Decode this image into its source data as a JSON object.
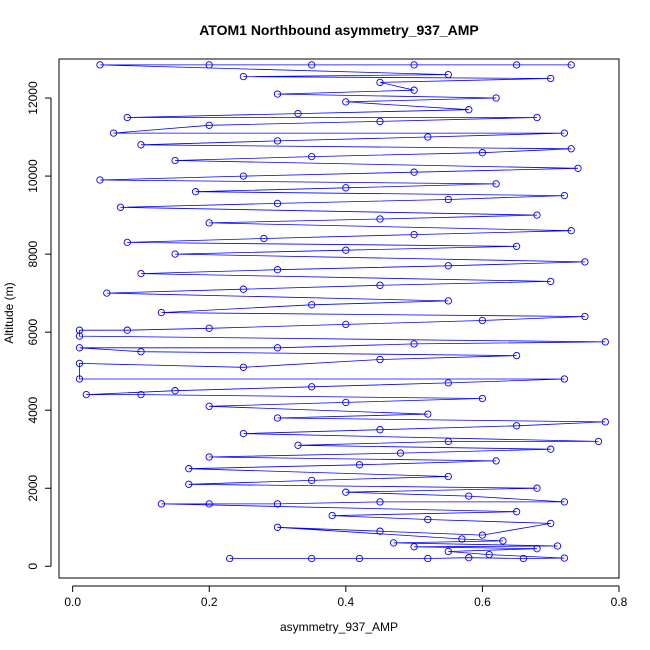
{
  "chart_data": {
    "type": "scatter",
    "title": "ATOM1 Northbound asymmetry_937_AMP",
    "xlabel": "asymmetry_937_AMP",
    "ylabel": "Altitude (m)",
    "xlim": [
      -0.02,
      0.8
    ],
    "ylim": [
      -300,
      13000
    ],
    "x_ticks": [
      0.0,
      0.2,
      0.4,
      0.6,
      0.8
    ],
    "x_tick_labels": [
      "0.0",
      "0.2",
      "0.4",
      "0.6",
      "0.8"
    ],
    "y_ticks": [
      0,
      2000,
      4000,
      6000,
      8000,
      10000,
      12000
    ],
    "y_tick_labels": [
      "0",
      "2000",
      "4000",
      "6000",
      "8000",
      "10000",
      "12000"
    ],
    "grid": false,
    "legend": "none",
    "color": "#0000ff",
    "marker": "open-circle",
    "connected": true,
    "series": [
      {
        "values": [
          [
            0.23,
            200
          ],
          [
            0.35,
            200
          ],
          [
            0.42,
            200
          ],
          [
            0.52,
            200
          ],
          [
            0.58,
            220
          ],
          [
            0.66,
            200
          ],
          [
            0.72,
            210
          ],
          [
            0.61,
            300
          ],
          [
            0.55,
            380
          ],
          [
            0.68,
            450
          ],
          [
            0.5,
            500
          ],
          [
            0.71,
            520
          ],
          [
            0.47,
            600
          ],
          [
            0.63,
            650
          ],
          [
            0.57,
            700
          ],
          [
            0.3,
            1000
          ],
          [
            0.45,
            900
          ],
          [
            0.6,
            800
          ],
          [
            0.7,
            1100
          ],
          [
            0.52,
            1200
          ],
          [
            0.38,
            1300
          ],
          [
            0.65,
            1400
          ],
          [
            0.13,
            1600
          ],
          [
            0.2,
            1600
          ],
          [
            0.3,
            1600
          ],
          [
            0.45,
            1650
          ],
          [
            0.72,
            1650
          ],
          [
            0.58,
            1800
          ],
          [
            0.4,
            1900
          ],
          [
            0.68,
            2000
          ],
          [
            0.17,
            2100
          ],
          [
            0.35,
            2200
          ],
          [
            0.55,
            2300
          ],
          [
            0.17,
            2500
          ],
          [
            0.42,
            2600
          ],
          [
            0.62,
            2700
          ],
          [
            0.2,
            2800
          ],
          [
            0.48,
            2900
          ],
          [
            0.7,
            3000
          ],
          [
            0.33,
            3100
          ],
          [
            0.55,
            3200
          ],
          [
            0.77,
            3200
          ],
          [
            0.25,
            3400
          ],
          [
            0.45,
            3500
          ],
          [
            0.65,
            3600
          ],
          [
            0.78,
            3700
          ],
          [
            0.3,
            3800
          ],
          [
            0.52,
            3900
          ],
          [
            0.2,
            4100
          ],
          [
            0.4,
            4200
          ],
          [
            0.6,
            4300
          ],
          [
            0.1,
            4400
          ],
          [
            0.02,
            4400
          ],
          [
            0.15,
            4500
          ],
          [
            0.35,
            4600
          ],
          [
            0.55,
            4700
          ],
          [
            0.72,
            4800
          ],
          [
            0.01,
            4800
          ],
          [
            0.01,
            5200
          ],
          [
            0.25,
            5100
          ],
          [
            0.45,
            5300
          ],
          [
            0.65,
            5400
          ],
          [
            0.1,
            5500
          ],
          [
            0.01,
            5600
          ],
          [
            0.3,
            5600
          ],
          [
            0.5,
            5700
          ],
          [
            0.78,
            5750
          ],
          [
            0.01,
            5900
          ],
          [
            0.01,
            6050
          ],
          [
            0.08,
            6050
          ],
          [
            0.2,
            6100
          ],
          [
            0.4,
            6200
          ],
          [
            0.6,
            6300
          ],
          [
            0.75,
            6400
          ],
          [
            0.13,
            6500
          ],
          [
            0.35,
            6700
          ],
          [
            0.55,
            6800
          ],
          [
            0.05,
            7000
          ],
          [
            0.25,
            7100
          ],
          [
            0.45,
            7200
          ],
          [
            0.7,
            7300
          ],
          [
            0.1,
            7500
          ],
          [
            0.3,
            7600
          ],
          [
            0.55,
            7700
          ],
          [
            0.75,
            7800
          ],
          [
            0.15,
            8000
          ],
          [
            0.4,
            8100
          ],
          [
            0.65,
            8200
          ],
          [
            0.08,
            8300
          ],
          [
            0.28,
            8400
          ],
          [
            0.5,
            8500
          ],
          [
            0.73,
            8600
          ],
          [
            0.2,
            8800
          ],
          [
            0.45,
            8900
          ],
          [
            0.68,
            9000
          ],
          [
            0.07,
            9200
          ],
          [
            0.3,
            9300
          ],
          [
            0.55,
            9400
          ],
          [
            0.72,
            9500
          ],
          [
            0.18,
            9600
          ],
          [
            0.4,
            9700
          ],
          [
            0.62,
            9800
          ],
          [
            0.04,
            9900
          ],
          [
            0.25,
            10000
          ],
          [
            0.5,
            10100
          ],
          [
            0.74,
            10200
          ],
          [
            0.15,
            10400
          ],
          [
            0.35,
            10500
          ],
          [
            0.6,
            10600
          ],
          [
            0.73,
            10700
          ],
          [
            0.1,
            10800
          ],
          [
            0.3,
            10900
          ],
          [
            0.52,
            11000
          ],
          [
            0.72,
            11100
          ],
          [
            0.06,
            11100
          ],
          [
            0.2,
            11300
          ],
          [
            0.45,
            11400
          ],
          [
            0.68,
            11500
          ],
          [
            0.08,
            11500
          ],
          [
            0.33,
            11600
          ],
          [
            0.58,
            11700
          ],
          [
            0.4,
            11900
          ],
          [
            0.62,
            12000
          ],
          [
            0.3,
            12100
          ],
          [
            0.5,
            12200
          ],
          [
            0.45,
            12400
          ],
          [
            0.7,
            12500
          ],
          [
            0.25,
            12550
          ],
          [
            0.55,
            12600
          ],
          [
            0.04,
            12850
          ],
          [
            0.2,
            12850
          ],
          [
            0.35,
            12850
          ],
          [
            0.5,
            12850
          ],
          [
            0.65,
            12850
          ],
          [
            0.73,
            12850
          ]
        ]
      }
    ]
  }
}
